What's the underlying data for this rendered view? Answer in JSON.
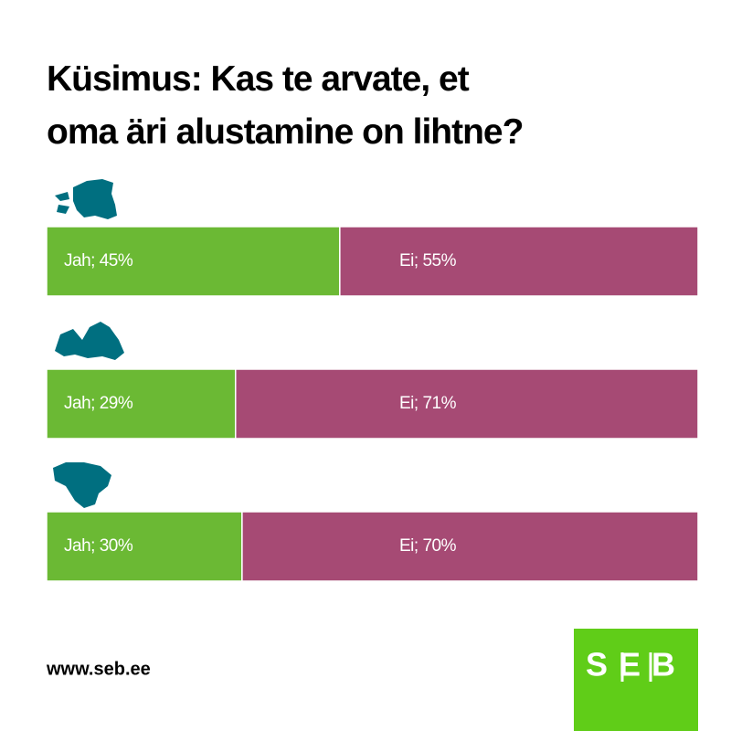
{
  "chart_data": {
    "type": "bar",
    "orientation": "horizontal",
    "stacked": true,
    "title": "Küsimus: Kas te arvate, et\noma äri alustamine on lihtne?",
    "categories": [
      null,
      null,
      null
    ],
    "xlim": [
      0,
      100
    ],
    "series": [
      {
        "name": "Jah",
        "color": "#6bb934",
        "values": [
          45,
          29,
          30
        ],
        "value_labels": [
          "Jah; 45%",
          "Jah; 29%",
          "Jah; 30%"
        ]
      },
      {
        "name": "Ei",
        "color": "#a64a74",
        "values": [
          55,
          71,
          70
        ],
        "value_labels": [
          "Ei; 55%",
          "Ei; 71%",
          "Ei; 70%"
        ]
      }
    ]
  },
  "footer": {
    "url": "www.seb.ee",
    "logo": "SEB"
  }
}
